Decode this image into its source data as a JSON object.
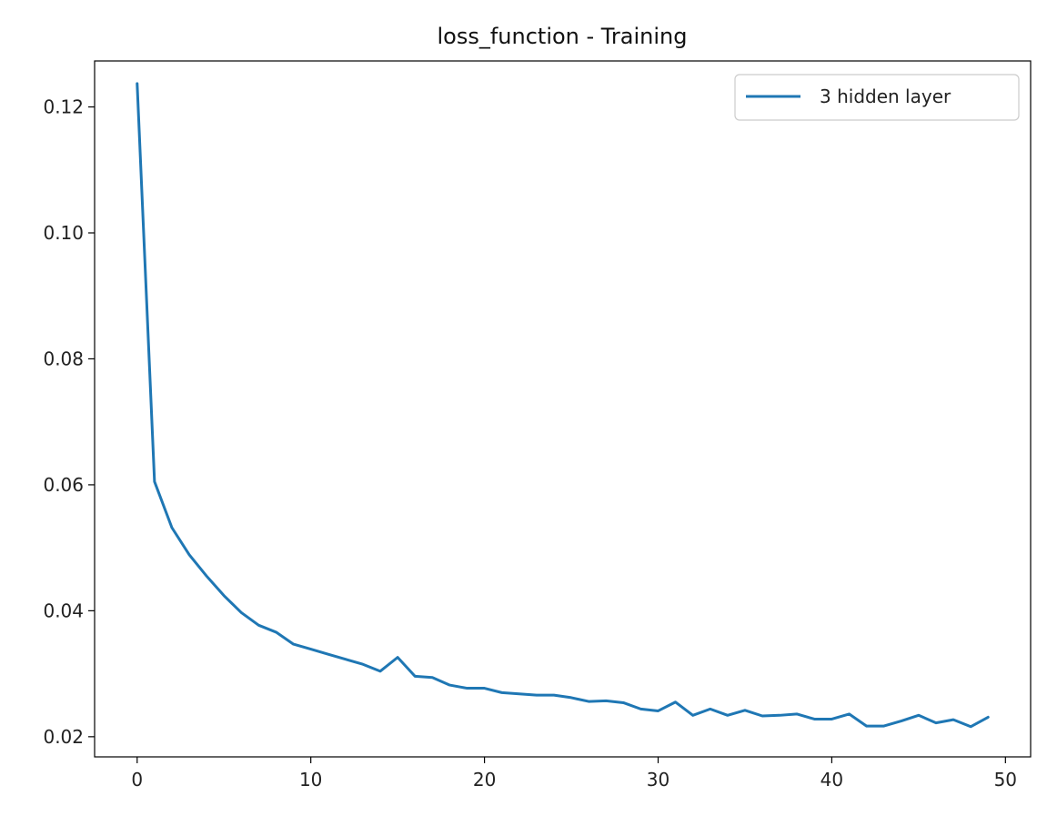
{
  "chart_data": {
    "type": "line",
    "title": "loss_function - Training",
    "xlabel": "",
    "ylabel": "",
    "xlim": [
      -2.45,
      51.45
    ],
    "ylim": [
      0.0168,
      0.1273
    ],
    "x_ticks": [
      0,
      10,
      20,
      30,
      40,
      50
    ],
    "y_ticks": [
      0.02,
      0.04,
      0.06,
      0.08,
      0.1,
      0.12
    ],
    "x_tick_labels": [
      "0",
      "10",
      "20",
      "30",
      "40",
      "50"
    ],
    "y_tick_labels": [
      "0.02",
      "0.04",
      "0.06",
      "0.08",
      "0.10",
      "0.12"
    ],
    "grid": false,
    "legend_position": "top-right",
    "colors": {
      "series": "#1f77b4",
      "axes": "#000000"
    },
    "series": [
      {
        "name": "3 hidden layer",
        "x": [
          0,
          1,
          2,
          3,
          4,
          5,
          6,
          7,
          8,
          9,
          10,
          11,
          12,
          13,
          14,
          15,
          16,
          17,
          18,
          19,
          20,
          21,
          22,
          23,
          24,
          25,
          26,
          27,
          28,
          29,
          30,
          31,
          32,
          33,
          34,
          35,
          36,
          37,
          38,
          39,
          40,
          41,
          42,
          43,
          44,
          45,
          46,
          47,
          48,
          49
        ],
        "values": [
          0.1237,
          0.0605,
          0.0532,
          0.0489,
          0.0455,
          0.0424,
          0.0397,
          0.0377,
          0.0366,
          0.0347,
          0.0339,
          0.0331,
          0.0323,
          0.0315,
          0.0304,
          0.0326,
          0.0296,
          0.0294,
          0.0282,
          0.0277,
          0.0277,
          0.027,
          0.0268,
          0.0266,
          0.0266,
          0.0262,
          0.0256,
          0.0257,
          0.0254,
          0.0244,
          0.0241,
          0.0255,
          0.0234,
          0.0244,
          0.0234,
          0.0242,
          0.0233,
          0.0234,
          0.0236,
          0.0228,
          0.0228,
          0.0236,
          0.0217,
          0.0217,
          0.0225,
          0.0234,
          0.0222,
          0.0227,
          0.0216,
          0.0231
        ]
      }
    ]
  }
}
